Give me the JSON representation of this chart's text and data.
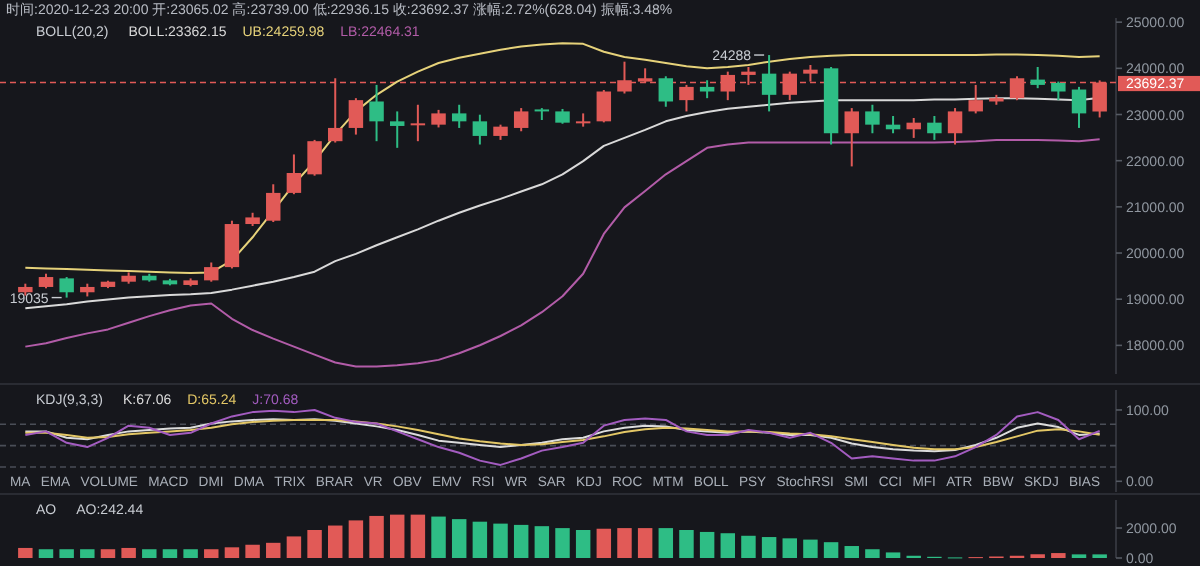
{
  "chart_data": [
    {
      "type": "candlestick",
      "title": "时间:2020-12-23 20:00 开:23065.02 高:23739.00 低:22936.15 收:23692.37 涨幅:2.72%(628.04) 振幅:3.48%",
      "legend_title": "BOLL(20,2)",
      "legend": "top",
      "categories": [
        null,
        null,
        null,
        null,
        null,
        null,
        null,
        null,
        null,
        null,
        null,
        null,
        null,
        null,
        null,
        null,
        null,
        null,
        null,
        null,
        null,
        null,
        null,
        null,
        null,
        null,
        null,
        null,
        null,
        null,
        null,
        null,
        null,
        null,
        null,
        null,
        null,
        null,
        null,
        null,
        null,
        null,
        null,
        null,
        null,
        null,
        null,
        null,
        null,
        null,
        null,
        null,
        null
      ],
      "ohlc": [
        [
          19150,
          19336,
          19078,
          19265
        ],
        [
          19265,
          19552,
          19236,
          19480
        ],
        [
          19451,
          19480,
          19035,
          19150
        ],
        [
          19150,
          19336,
          19060,
          19265
        ],
        [
          19265,
          19400,
          19240,
          19379
        ],
        [
          19379,
          19580,
          19336,
          19508
        ],
        [
          19508,
          19550,
          19380,
          19408
        ],
        [
          19408,
          19440,
          19300,
          19322
        ],
        [
          19308,
          19450,
          19280,
          19408
        ],
        [
          19408,
          19795,
          19379,
          19695
        ],
        [
          19695,
          20700,
          19666,
          20628
        ],
        [
          20628,
          20872,
          20585,
          20771
        ],
        [
          20700,
          21489,
          20671,
          21302
        ],
        [
          21302,
          22135,
          21274,
          21733
        ],
        [
          21704,
          22450,
          21675,
          22422
        ],
        [
          22422,
          23785,
          22393,
          22709
        ],
        [
          22709,
          23354,
          22565,
          23311
        ],
        [
          23282,
          23641,
          22422,
          22852
        ],
        [
          22852,
          23067,
          22278,
          22752
        ],
        [
          22780,
          23211,
          22422,
          22809
        ],
        [
          22780,
          23100,
          22720,
          23024
        ],
        [
          23024,
          23211,
          22709,
          22852
        ],
        [
          22852,
          22996,
          22350,
          22536
        ],
        [
          22536,
          22780,
          22450,
          22737
        ],
        [
          22709,
          23139,
          22637,
          23067
        ],
        [
          23110,
          23139,
          22881,
          23067
        ],
        [
          23067,
          23120,
          22800,
          22823
        ],
        [
          22809,
          23024,
          22737,
          22852
        ],
        [
          22852,
          23530,
          22830,
          23498
        ],
        [
          23498,
          24144,
          23455,
          23742
        ],
        [
          23713,
          24000,
          23684,
          23785
        ],
        [
          23785,
          23828,
          23168,
          23282
        ],
        [
          23311,
          23641,
          23067,
          23598
        ],
        [
          23598,
          23742,
          23354,
          23498
        ],
        [
          23498,
          23928,
          23311,
          23857
        ],
        [
          23857,
          24029,
          23641,
          23928
        ],
        [
          23885,
          24288,
          23067,
          23426
        ],
        [
          23426,
          23928,
          23311,
          23885
        ],
        [
          23885,
          24072,
          23713,
          23971
        ],
        [
          24000,
          24029,
          22350,
          22594
        ],
        [
          22594,
          23139,
          21876,
          23067
        ],
        [
          23067,
          23211,
          22594,
          22780
        ],
        [
          22780,
          22967,
          22594,
          22680
        ],
        [
          22680,
          22924,
          22493,
          22823
        ],
        [
          22823,
          22967,
          22450,
          22594
        ],
        [
          22594,
          23139,
          22350,
          23067
        ],
        [
          23067,
          23641,
          23024,
          23311
        ],
        [
          23282,
          23426,
          23211,
          23354
        ],
        [
          23354,
          23828,
          23311,
          23785
        ],
        [
          23756,
          24029,
          23570,
          23641
        ],
        [
          23684,
          23713,
          23311,
          23498
        ],
        [
          23541,
          23598,
          22709,
          23024
        ],
        [
          23065.02,
          23739.0,
          22936.15,
          23692.37
        ]
      ],
      "colors": [
        "#e15a57",
        "#e15a57",
        "#2ebd85",
        "#e15a57",
        "#e15a57",
        "#e15a57",
        "#2ebd85",
        "#2ebd85",
        "#e15a57",
        "#e15a57",
        "#e15a57",
        "#e15a57",
        "#e15a57",
        "#e15a57",
        "#e15a57",
        "#e15a57",
        "#e15a57",
        "#2ebd85",
        "#2ebd85",
        "#e15a57",
        "#e15a57",
        "#2ebd85",
        "#2ebd85",
        "#e15a57",
        "#e15a57",
        "#2ebd85",
        "#2ebd85",
        "#e15a57",
        "#e15a57",
        "#e15a57",
        "#e15a57",
        "#2ebd85",
        "#e15a57",
        "#2ebd85",
        "#e15a57",
        "#e15a57",
        "#2ebd85",
        "#e15a57",
        "#e15a57",
        "#2ebd85",
        "#e15a57",
        "#2ebd85",
        "#2ebd85",
        "#e15a57",
        "#2ebd85",
        "#e15a57",
        "#e15a57",
        "#e15a57",
        "#e15a57",
        "#2ebd85",
        "#2ebd85",
        "#2ebd85",
        "#e15a57"
      ],
      "series": [
        {
          "type": "line",
          "name": "BOLL:23362.15",
          "color": "#d9d9d9",
          "values": [
            18805,
            18848,
            18891,
            18949,
            18992,
            19035,
            19064,
            19092,
            19107,
            19135,
            19207,
            19293,
            19379,
            19480,
            19595,
            19824,
            19982,
            20169,
            20341,
            20513,
            20700,
            20872,
            21030,
            21173,
            21331,
            21489,
            21704,
            21991,
            22321,
            22493,
            22666,
            22852,
            22967,
            23053,
            23125,
            23168,
            23211,
            23254,
            23282,
            23311,
            23311,
            23311,
            23311,
            23311,
            23326,
            23326,
            23340,
            23354,
            23354,
            23340,
            23326,
            23311,
            23362.15
          ]
        },
        {
          "type": "line",
          "name": "UB:24259.98",
          "color": "#e6d27a",
          "values": [
            19681,
            19666,
            19652,
            19638,
            19623,
            19609,
            19594,
            19580,
            19566,
            19580,
            19839,
            20341,
            20915,
            21489,
            21991,
            22565,
            23067,
            23426,
            23713,
            23928,
            24115,
            24230,
            24316,
            24402,
            24474,
            24517,
            24545,
            24531,
            24359,
            24244,
            24187,
            24115,
            24043,
            24000,
            24029,
            24072,
            24144,
            24201,
            24244,
            24273,
            24287,
            24287,
            24287,
            24287,
            24287,
            24287,
            24287,
            24301,
            24301,
            24287,
            24273,
            24244,
            24259.98
          ]
        },
        {
          "type": "line",
          "name": "LB:22464.31",
          "color": "#b25ca8",
          "values": [
            17973,
            18045,
            18160,
            18260,
            18346,
            18490,
            18633,
            18762,
            18863,
            18906,
            18576,
            18332,
            18145,
            17973,
            17801,
            17629,
            17543,
            17543,
            17571,
            17614,
            17686,
            17830,
            18002,
            18203,
            18432,
            18719,
            19064,
            19552,
            20413,
            20989,
            21345,
            21704,
            21991,
            22278,
            22350,
            22393,
            22393,
            22393,
            22393,
            22393,
            22393,
            22393,
            22393,
            22393,
            22393,
            22407,
            22422,
            22450,
            22450,
            22450,
            22436,
            22422,
            22464.31
          ]
        }
      ],
      "ylim": [
        17380,
        25090
      ],
      "yticks": [
        {
          "value": 18000,
          "label": "18000.00"
        },
        {
          "value": 19000,
          "label": "19000.00"
        },
        {
          "value": 20000,
          "label": "20000.00"
        },
        {
          "value": 21000,
          "label": "21000.00"
        },
        {
          "value": 22000,
          "label": "22000.00"
        },
        {
          "value": 23000,
          "label": "23000.00"
        },
        {
          "value": 24000,
          "label": "24000.00"
        },
        {
          "value": 25000,
          "label": "25000.00"
        }
      ],
      "ref_lines": [
        {
          "axis": "y",
          "value": 23692.37,
          "label": "23692.37",
          "color": "#e15a57",
          "line_style": "dashed"
        }
      ],
      "annotations": [
        "24288",
        "19035"
      ]
    },
    {
      "type": "line",
      "legend_title": "KDJ(9,3,3)",
      "legend": "top left",
      "categories": [
        null,
        null,
        null,
        null,
        null,
        null,
        null,
        null,
        null,
        null,
        null,
        null,
        null,
        null,
        null,
        null,
        null,
        null,
        null,
        null,
        null,
        null,
        null,
        null,
        null,
        null,
        null,
        null,
        null,
        null,
        null,
        null,
        null,
        null,
        null,
        null,
        null,
        null,
        null,
        null,
        null,
        null,
        null,
        null,
        null,
        null,
        null,
        null,
        null,
        null,
        null,
        null,
        null
      ],
      "series": [
        {
          "name": "K:67.06",
          "color": "#dcdcdc",
          "values": [
            70,
            70,
            61,
            59,
            65,
            70,
            72,
            74,
            75,
            81,
            84,
            86,
            87,
            86,
            87,
            85,
            81,
            77,
            72,
            65,
            57,
            54,
            51,
            48,
            51,
            54,
            59,
            61,
            70,
            75,
            78,
            77,
            72,
            70,
            68,
            70,
            68,
            65,
            65,
            61,
            53,
            48,
            45,
            43,
            42,
            44,
            51,
            61,
            75,
            81,
            76,
            65,
            67.06
          ]
        },
        {
          "name": "D:65.24",
          "color": "#e3c766",
          "values": [
            68,
            68,
            65,
            61,
            62,
            66,
            68,
            70,
            72,
            75,
            80,
            83,
            85,
            86,
            86,
            86,
            84,
            81,
            77,
            72,
            66,
            60,
            56,
            53,
            51,
            52,
            55,
            58,
            63,
            69,
            73,
            75,
            74,
            72,
            70,
            70,
            69,
            67,
            66,
            63,
            59,
            55,
            51,
            47,
            45,
            45,
            48,
            55,
            63,
            71,
            73,
            70,
            65.24
          ]
        },
        {
          "name": "J:70.68",
          "color": "#a35cc0",
          "values": [
            65,
            70,
            54,
            48,
            61,
            78,
            75,
            65,
            68,
            81,
            91,
            97,
            99,
            97,
            100,
            89,
            83,
            81,
            70,
            59,
            48,
            40,
            29,
            23,
            32,
            43,
            48,
            54,
            78,
            86,
            88,
            86,
            70,
            65,
            65,
            72,
            68,
            61,
            68,
            54,
            32,
            35,
            32,
            29,
            29,
            35,
            48,
            65,
            91,
            97,
            86,
            59,
            70.68
          ]
        }
      ],
      "ylim": [
        -15,
        128
      ],
      "yticks": [
        {
          "value": 0,
          "label": "0.00"
        },
        {
          "value": 100,
          "label": "100.00"
        }
      ],
      "ref_lines": [
        {
          "axis": "y",
          "value": 80,
          "color": "#4a4e57",
          "line_style": "dashed"
        },
        {
          "axis": "y",
          "value": 50,
          "color": "#4a4e57",
          "line_style": "dashed"
        },
        {
          "axis": "y",
          "value": 20,
          "color": "#4a4e57",
          "line_style": "dashed"
        }
      ],
      "annotations": [
        "MA",
        "EMA",
        "VOLUME",
        "MACD",
        "DMI",
        "DMA",
        "TRIX",
        "BRAR",
        "VR",
        "OBV",
        "EMV",
        "RSI",
        "WR",
        "SAR",
        "KDJ",
        "ROC",
        "MTM",
        "BOLL",
        "PSY",
        "StochRSI",
        "SMI",
        "CCI",
        "MFI",
        "ATR",
        "BBW",
        "SKDJ",
        "BIAS"
      ]
    },
    {
      "type": "bar",
      "legend_title": "AO",
      "legend": "top left",
      "categories": [
        null,
        null,
        null,
        null,
        null,
        null,
        null,
        null,
        null,
        null,
        null,
        null,
        null,
        null,
        null,
        null,
        null,
        null,
        null,
        null,
        null,
        null,
        null,
        null,
        null,
        null,
        null,
        null,
        null,
        null,
        null,
        null,
        null,
        null,
        null,
        null,
        null,
        null,
        null,
        null,
        null,
        null,
        null,
        null,
        null,
        null,
        null,
        null,
        null,
        null,
        null,
        null,
        null
      ],
      "series": [
        {
          "name": "AO:242.44",
          "values": [
            671,
            585,
            585,
            585,
            585,
            671,
            585,
            585,
            585,
            585,
            713,
            884,
            1013,
            1440,
            1868,
            2166,
            2509,
            2807,
            2893,
            2893,
            2764,
            2594,
            2423,
            2294,
            2209,
            2124,
            1995,
            1868,
            1953,
            1995,
            1995,
            1995,
            1868,
            1739,
            1653,
            1483,
            1398,
            1312,
            1227,
            1055,
            799,
            585,
            372,
            150,
            80,
            40,
            60,
            100,
            150,
            250,
            329,
            243,
            242.44
          ],
          "colors": [
            "#e15a57",
            "#2ebd85",
            "#2ebd85",
            "#2ebd85",
            "#e15a57",
            "#e15a57",
            "#2ebd85",
            "#2ebd85",
            "#2ebd85",
            "#e15a57",
            "#e15a57",
            "#e15a57",
            "#e15a57",
            "#e15a57",
            "#e15a57",
            "#e15a57",
            "#e15a57",
            "#e15a57",
            "#e15a57",
            "#e15a57",
            "#2ebd85",
            "#2ebd85",
            "#2ebd85",
            "#2ebd85",
            "#2ebd85",
            "#2ebd85",
            "#2ebd85",
            "#2ebd85",
            "#e15a57",
            "#e15a57",
            "#e15a57",
            "#2ebd85",
            "#2ebd85",
            "#2ebd85",
            "#2ebd85",
            "#2ebd85",
            "#2ebd85",
            "#2ebd85",
            "#2ebd85",
            "#2ebd85",
            "#2ebd85",
            "#2ebd85",
            "#2ebd85",
            "#2ebd85",
            "#2ebd85",
            "#2ebd85",
            "#e15a57",
            "#e15a57",
            "#e15a57",
            "#e15a57",
            "#e15a57",
            "#2ebd85",
            "#2ebd85"
          ]
        }
      ],
      "ylim": [
        0,
        3870
      ],
      "yticks": [
        {
          "value": 0,
          "label": "0.00"
        },
        {
          "value": 2000,
          "label": "2000.00"
        }
      ]
    }
  ]
}
